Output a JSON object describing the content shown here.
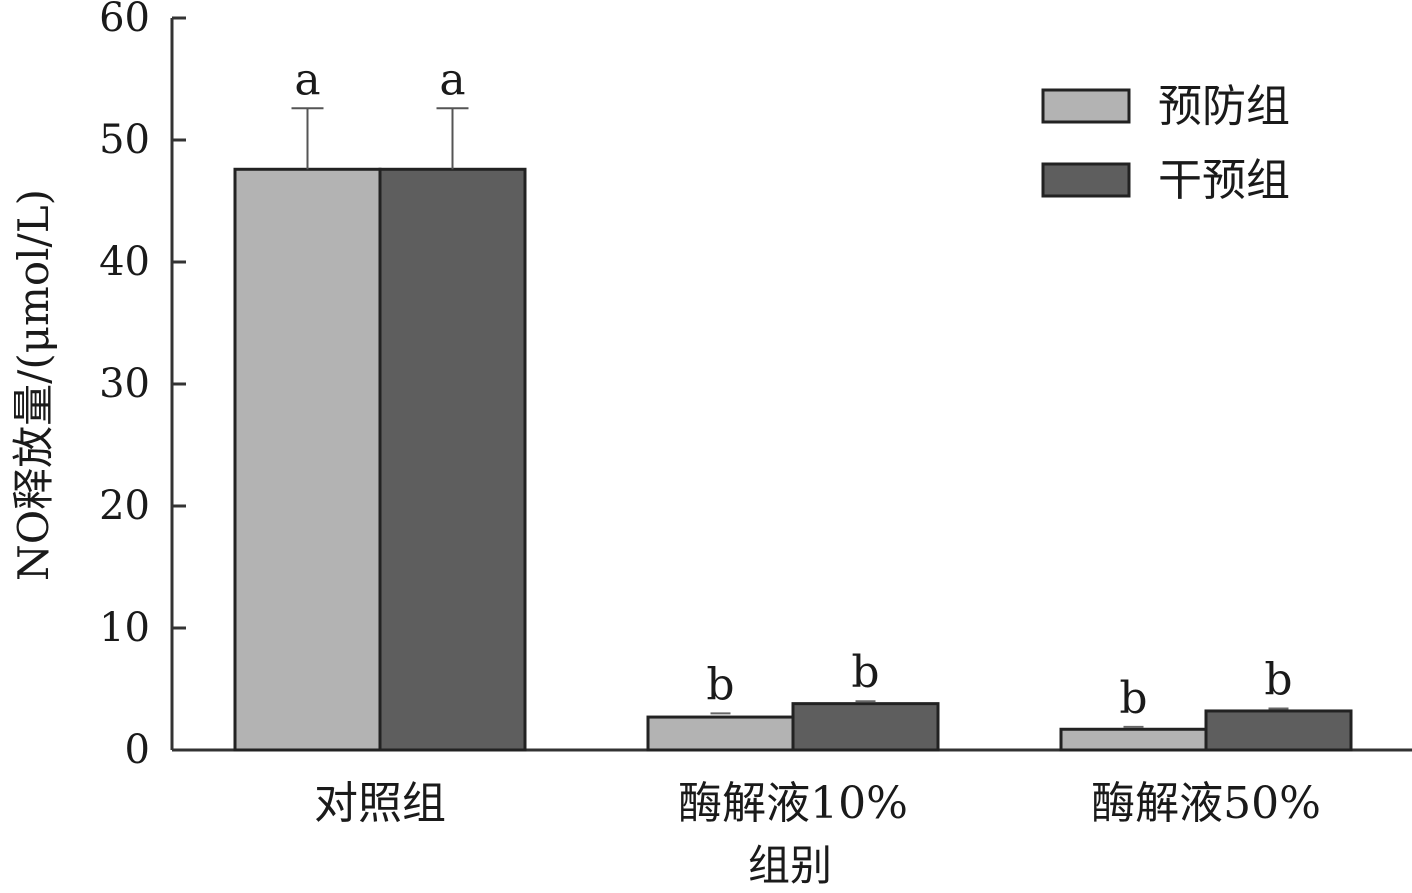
{
  "chart_data": {
    "type": "bar",
    "title": "",
    "xlabel": "组别",
    "ylabel": "NO释放量/(μmol/L)",
    "ylim": [
      0,
      60
    ],
    "yticks": [
      0,
      10,
      20,
      30,
      40,
      50,
      60
    ],
    "categories": [
      "对照组",
      "酶解液10%",
      "酶解液50%"
    ],
    "series": [
      {
        "name": "预防组",
        "color": "#b3b3b3",
        "values": [
          47.6,
          2.7,
          1.7
        ],
        "error": [
          5.0,
          0.3,
          0.2
        ],
        "significance": [
          "a",
          "b",
          "b"
        ]
      },
      {
        "name": "干预组",
        "color": "#5e5e5e",
        "values": [
          47.6,
          3.8,
          3.2
        ],
        "error": [
          5.0,
          0.2,
          0.2
        ],
        "significance": [
          "a",
          "b",
          "b"
        ]
      }
    ],
    "grid": false,
    "legend_position": "top-right"
  }
}
